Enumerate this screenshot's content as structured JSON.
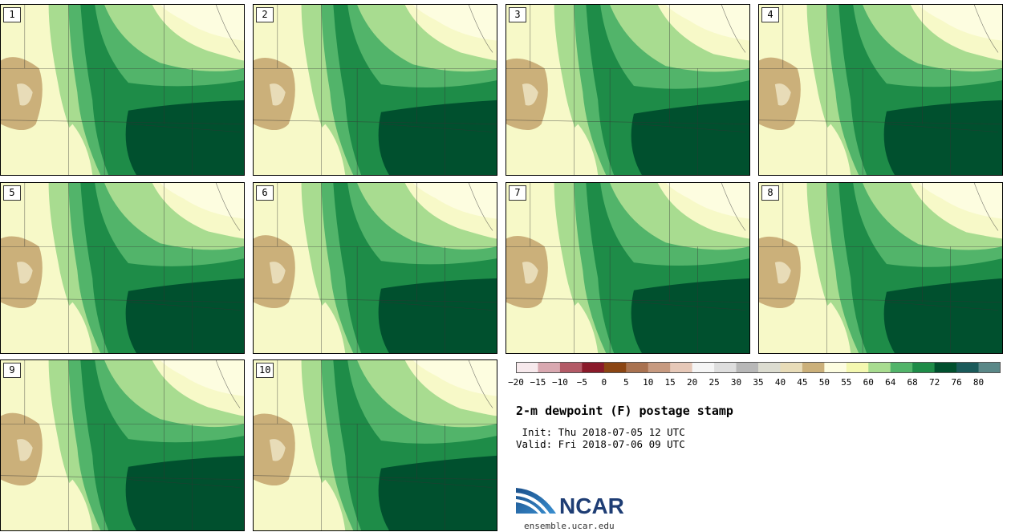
{
  "panels": [
    {
      "label": "1"
    },
    {
      "label": "2"
    },
    {
      "label": "3"
    },
    {
      "label": "4"
    },
    {
      "label": "5"
    },
    {
      "label": "6"
    },
    {
      "label": "7"
    },
    {
      "label": "8"
    },
    {
      "label": "9"
    },
    {
      "label": "10"
    }
  ],
  "colorbar": {
    "ticks": [
      "−20",
      "−15",
      "−10",
      "−5",
      "0",
      "5",
      "10",
      "15",
      "20",
      "25",
      "30",
      "35",
      "40",
      "45",
      "50",
      "55",
      "60",
      "64",
      "68",
      "72",
      "76",
      "80"
    ],
    "colors": [
      "#f7e9ec",
      "#d9a8b0",
      "#b35a66",
      "#8a1a2a",
      "#8b4513",
      "#a97250",
      "#c79a80",
      "#e6c8b8",
      "#f5f5f5",
      "#dedede",
      "#b8b8b8",
      "#dcdcd0",
      "#e8dcb8",
      "#cbb07a",
      "#fdfde0",
      "#f4f8b0",
      "#a8dc90",
      "#52b46a",
      "#1e8c48",
      "#00502e",
      "#1a5a5a",
      "#5a8888"
    ]
  },
  "title": "2-m dewpoint (F) postage stamp",
  "init": " Init: Thu 2018-07-05 12 UTC",
  "valid": "Valid: Fri 2018-07-06 09 UTC",
  "logo": {
    "text": "NCAR",
    "url_text": "ensemble.ucar.edu"
  }
}
